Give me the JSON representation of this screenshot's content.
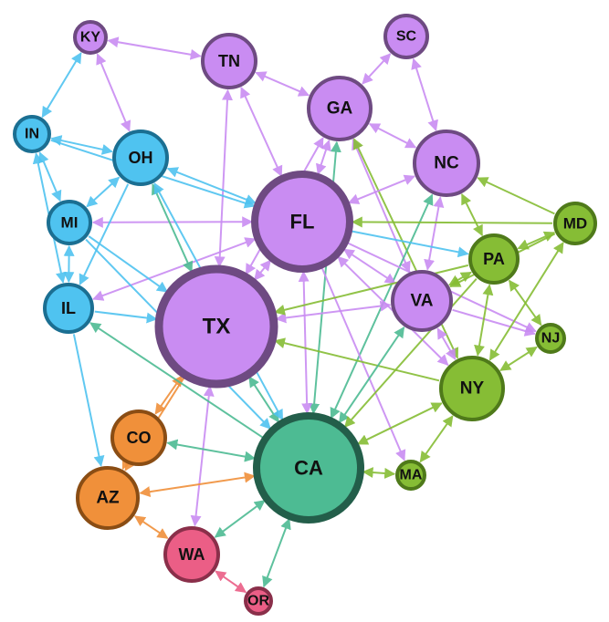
{
  "graph": {
    "groups": {
      "purple": {
        "fill": "#c98cf2",
        "stroke": "#6e4a82"
      },
      "blue": {
        "fill": "#4fc3f0",
        "stroke": "#1b6f92"
      },
      "green": {
        "fill": "#86bd35",
        "stroke": "#4f7a1a"
      },
      "teal": {
        "fill": "#4dbb93",
        "stroke": "#235e4a"
      },
      "orange": {
        "fill": "#f0903a",
        "stroke": "#8a4d14"
      },
      "pink": {
        "fill": "#eb5e86",
        "stroke": "#8a2f4a"
      }
    },
    "nodes": [
      {
        "id": "KY",
        "label": "KY",
        "group": "purple",
        "weight": 1
      },
      {
        "id": "TN",
        "label": "TN",
        "group": "purple",
        "weight": 2
      },
      {
        "id": "SC",
        "label": "SC",
        "group": "purple",
        "weight": 1.5
      },
      {
        "id": "GA",
        "label": "GA",
        "group": "purple",
        "weight": 3
      },
      {
        "id": "NC",
        "label": "NC",
        "group": "purple",
        "weight": 3
      },
      {
        "id": "FL",
        "label": "FL",
        "group": "purple",
        "weight": 8
      },
      {
        "id": "TX",
        "label": "TX",
        "group": "purple",
        "weight": 11
      },
      {
        "id": "VA",
        "label": "VA",
        "group": "purple",
        "weight": 2.5
      },
      {
        "id": "IN",
        "label": "IN",
        "group": "blue",
        "weight": 1.2
      },
      {
        "id": "OH",
        "label": "OH",
        "group": "blue",
        "weight": 2.5
      },
      {
        "id": "MI",
        "label": "MI",
        "group": "blue",
        "weight": 1.5
      },
      {
        "id": "IL",
        "label": "IL",
        "group": "blue",
        "weight": 2
      },
      {
        "id": "PA",
        "label": "PA",
        "group": "green",
        "weight": 2.2
      },
      {
        "id": "MD",
        "label": "MD",
        "group": "green",
        "weight": 1.5
      },
      {
        "id": "NJ",
        "label": "NJ",
        "group": "green",
        "weight": 0.7
      },
      {
        "id": "NY",
        "label": "NY",
        "group": "green",
        "weight": 3
      },
      {
        "id": "MA",
        "label": "MA",
        "group": "green",
        "weight": 0.7
      },
      {
        "id": "CA",
        "label": "CA",
        "group": "teal",
        "weight": 9
      },
      {
        "id": "CO",
        "label": "CO",
        "group": "orange",
        "weight": 2
      },
      {
        "id": "AZ",
        "label": "AZ",
        "group": "orange",
        "weight": 2.5
      },
      {
        "id": "WA",
        "label": "WA",
        "group": "pink",
        "weight": 2
      },
      {
        "id": "OR",
        "label": "OR",
        "group": "pink",
        "weight": 0.7
      }
    ],
    "edges": [
      {
        "source": "KY",
        "target": "TN",
        "color": "purple",
        "bidirectional": true
      },
      {
        "source": "KY",
        "target": "OH",
        "color": "purple",
        "bidirectional": true
      },
      {
        "source": "KY",
        "target": "IN",
        "color": "blue",
        "bidirectional": true
      },
      {
        "source": "TN",
        "target": "GA",
        "color": "purple",
        "bidirectional": true
      },
      {
        "source": "TN",
        "target": "FL",
        "color": "purple",
        "bidirectional": true
      },
      {
        "source": "TN",
        "target": "TX",
        "color": "purple",
        "bidirectional": true
      },
      {
        "source": "SC",
        "target": "GA",
        "color": "purple",
        "bidirectional": true
      },
      {
        "source": "SC",
        "target": "NC",
        "color": "purple",
        "bidirectional": true
      },
      {
        "source": "GA",
        "target": "NC",
        "color": "purple",
        "bidirectional": true
      },
      {
        "source": "GA",
        "target": "FL",
        "color": "purple",
        "bidirectional": true
      },
      {
        "source": "GA",
        "target": "TX",
        "color": "purple",
        "bidirectional": true
      },
      {
        "source": "GA",
        "target": "VA",
        "color": "purple",
        "bidirectional": true
      },
      {
        "source": "GA",
        "target": "CA",
        "color": "teal",
        "bidirectional": true
      },
      {
        "source": "GA",
        "target": "NY",
        "color": "green",
        "bidirectional": true
      },
      {
        "source": "NC",
        "target": "FL",
        "color": "purple",
        "bidirectional": true
      },
      {
        "source": "NC",
        "target": "VA",
        "color": "purple",
        "bidirectional": true
      },
      {
        "source": "NC",
        "target": "CA",
        "color": "teal",
        "bidirectional": true
      },
      {
        "source": "PA",
        "target": "NC",
        "color": "green",
        "bidirectional": true
      },
      {
        "source": "MD",
        "target": "NC",
        "color": "green",
        "bidirectional": false
      },
      {
        "source": "FL",
        "target": "TX",
        "color": "purple",
        "bidirectional": true
      },
      {
        "source": "FL",
        "target": "VA",
        "color": "purple",
        "bidirectional": true
      },
      {
        "source": "FL",
        "target": "NY",
        "color": "purple",
        "bidirectional": true
      },
      {
        "source": "FL",
        "target": "CA",
        "color": "purple",
        "bidirectional": true
      },
      {
        "source": "FL",
        "target": "MI",
        "color": "purple",
        "bidirectional": true
      },
      {
        "source": "FL",
        "target": "IL",
        "color": "purple",
        "bidirectional": true
      },
      {
        "source": "FL",
        "target": "MA",
        "color": "purple",
        "bidirectional": false
      },
      {
        "source": "FL",
        "target": "NJ",
        "color": "purple",
        "bidirectional": false
      },
      {
        "source": "FL",
        "target": "PA",
        "color": "blue",
        "bidirectional": false
      },
      {
        "source": "MD",
        "target": "FL",
        "color": "green",
        "bidirectional": false
      },
      {
        "source": "OH",
        "target": "FL",
        "color": "blue",
        "bidirectional": true
      },
      {
        "source": "IN",
        "target": "FL",
        "color": "blue",
        "bidirectional": false
      },
      {
        "source": "TX",
        "target": "VA",
        "color": "purple",
        "bidirectional": true
      },
      {
        "source": "TX",
        "target": "WA",
        "color": "purple",
        "bidirectional": true
      },
      {
        "source": "TX",
        "target": "CA",
        "color": "teal",
        "bidirectional": true
      },
      {
        "source": "TX",
        "target": "OH",
        "color": "teal",
        "bidirectional": true
      },
      {
        "source": "TX",
        "target": "CO",
        "color": "orange",
        "bidirectional": true
      },
      {
        "source": "TX",
        "target": "AZ",
        "color": "orange",
        "bidirectional": false
      },
      {
        "source": "IL",
        "target": "TX",
        "color": "blue",
        "bidirectional": false
      },
      {
        "source": "MI",
        "target": "TX",
        "color": "blue",
        "bidirectional": false
      },
      {
        "source": "NY",
        "target": "TX",
        "color": "green",
        "bidirectional": false
      },
      {
        "source": "PA",
        "target": "TX",
        "color": "green",
        "bidirectional": false
      },
      {
        "source": "VA",
        "target": "CA",
        "color": "teal",
        "bidirectional": true
      },
      {
        "source": "VA",
        "target": "NY",
        "color": "purple",
        "bidirectional": true
      },
      {
        "source": "VA",
        "target": "NJ",
        "color": "purple",
        "bidirectional": false
      },
      {
        "source": "PA",
        "target": "VA",
        "color": "green",
        "bidirectional": true
      },
      {
        "source": "MD",
        "target": "VA",
        "color": "green",
        "bidirectional": false
      },
      {
        "source": "IN",
        "target": "OH",
        "color": "blue",
        "bidirectional": true
      },
      {
        "source": "IN",
        "target": "MI",
        "color": "blue",
        "bidirectional": true
      },
      {
        "source": "IN",
        "target": "IL",
        "color": "blue",
        "bidirectional": true
      },
      {
        "source": "OH",
        "target": "MI",
        "color": "blue",
        "bidirectional": true
      },
      {
        "source": "OH",
        "target": "IL",
        "color": "blue",
        "bidirectional": false
      },
      {
        "source": "OH",
        "target": "CA",
        "color": "blue",
        "bidirectional": true
      },
      {
        "source": "MI",
        "target": "IL",
        "color": "blue",
        "bidirectional": true
      },
      {
        "source": "MI",
        "target": "CA",
        "color": "blue",
        "bidirectional": false
      },
      {
        "source": "IL",
        "target": "AZ",
        "color": "blue",
        "bidirectional": false
      },
      {
        "source": "CA",
        "target": "IL",
        "color": "teal",
        "bidirectional": false
      },
      {
        "source": "PA",
        "target": "MD",
        "color": "green",
        "bidirectional": true
      },
      {
        "source": "PA",
        "target": "NJ",
        "color": "green",
        "bidirectional": true
      },
      {
        "source": "PA",
        "target": "NY",
        "color": "green",
        "bidirectional": true
      },
      {
        "source": "PA",
        "target": "CA",
        "color": "green",
        "bidirectional": false
      },
      {
        "source": "MD",
        "target": "NY",
        "color": "green",
        "bidirectional": true
      },
      {
        "source": "NJ",
        "target": "NY",
        "color": "green",
        "bidirectional": true
      },
      {
        "source": "NY",
        "target": "CA",
        "color": "green",
        "bidirectional": true
      },
      {
        "source": "NY",
        "target": "MA",
        "color": "green",
        "bidirectional": true
      },
      {
        "source": "MA",
        "target": "CA",
        "color": "green",
        "bidirectional": true
      },
      {
        "source": "CA",
        "target": "CO",
        "color": "teal",
        "bidirectional": true
      },
      {
        "source": "CA",
        "target": "AZ",
        "color": "orange",
        "bidirectional": true
      },
      {
        "source": "CA",
        "target": "WA",
        "color": "teal",
        "bidirectional": true
      },
      {
        "source": "CA",
        "target": "OR",
        "color": "teal",
        "bidirectional": true
      },
      {
        "source": "AZ",
        "target": "WA",
        "color": "orange",
        "bidirectional": true
      },
      {
        "source": "WA",
        "target": "OR",
        "color": "pink",
        "bidirectional": true
      },
      {
        "source": "CO",
        "target": "AZ",
        "color": "orange",
        "bidirectional": false
      }
    ]
  }
}
